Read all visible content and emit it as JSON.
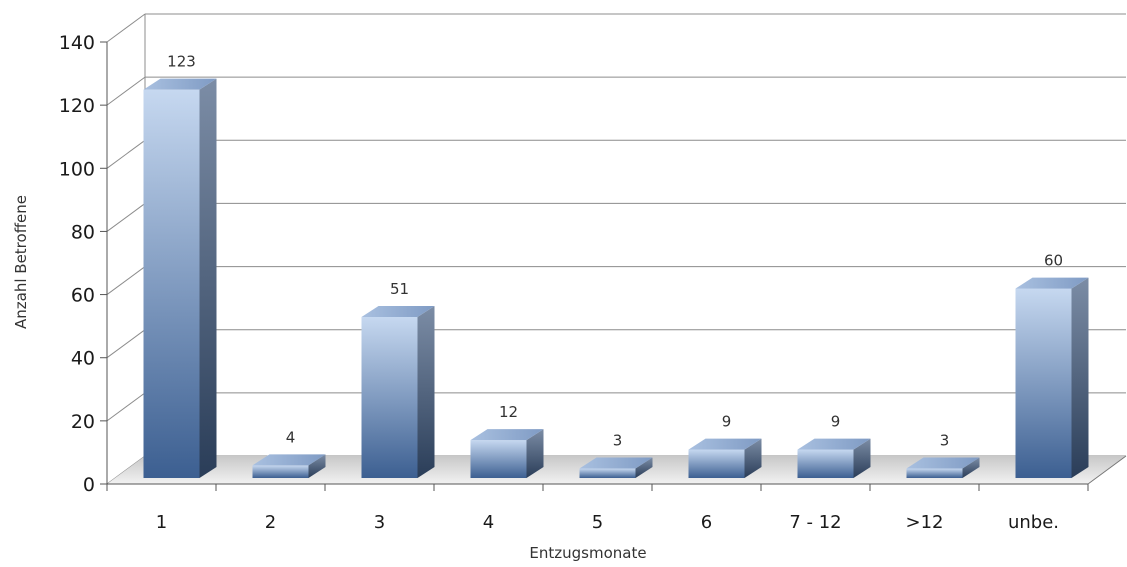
{
  "chart_data": {
    "type": "bar",
    "categories": [
      "1",
      "2",
      "3",
      "4",
      "5",
      "6",
      "7 - 12",
      ">12",
      "unbe."
    ],
    "values": [
      123,
      4,
      51,
      12,
      3,
      9,
      9,
      3,
      60
    ],
    "data_labels": [
      "123",
      "4",
      "51",
      "12",
      "3",
      "9",
      "9",
      "3",
      "60"
    ],
    "xlabel": "Entzugsmonate",
    "ylabel": "Anzahl Betroffene",
    "ylim": [
      0,
      140
    ],
    "yticks": [
      "0",
      "20",
      "40",
      "60",
      "80",
      "100",
      "120",
      "140"
    ],
    "grid": true,
    "style": "3d-column",
    "colors": {
      "bar_top_light": "#c6d8f0",
      "bar_bottom_dark": "#3c5f91",
      "bar_side": "#4a5f78",
      "bar_cap": "#93aed3",
      "grid": "#8c8c8c"
    }
  }
}
